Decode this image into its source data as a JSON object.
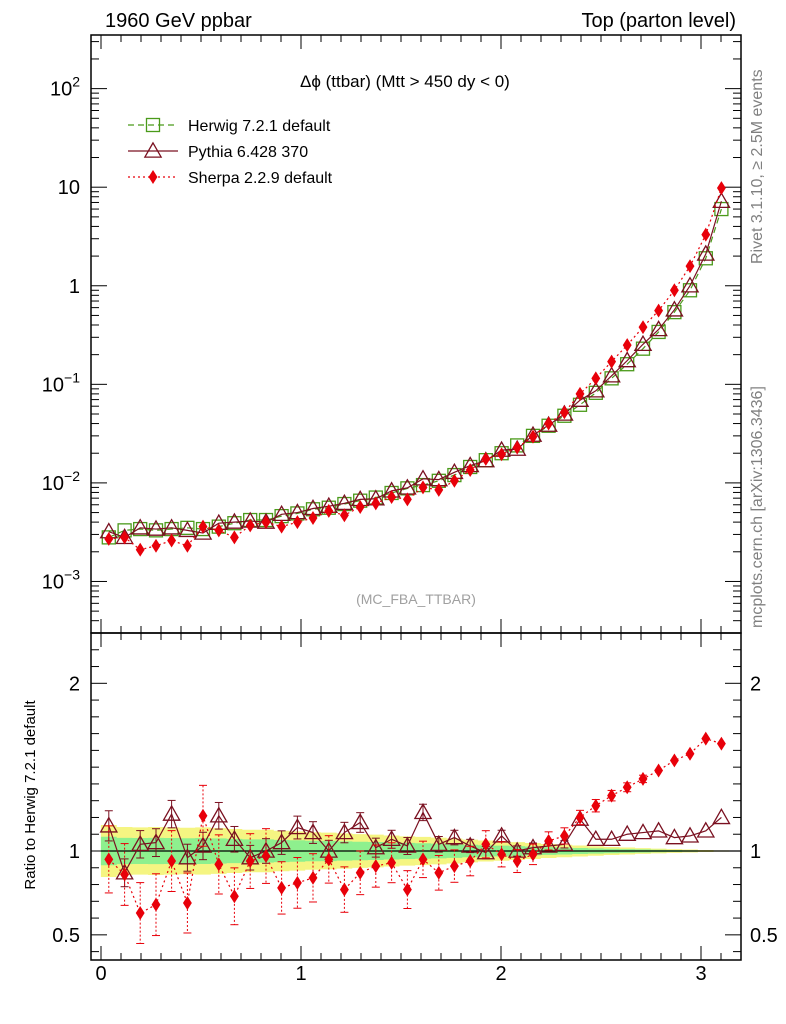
{
  "header": {
    "left": "1960 GeV ppbar",
    "right": "Top (parton level)"
  },
  "side_labels": {
    "top": "Rivet 3.1.10, ≥ 2.5M events",
    "bottom": "mcplots.cern.ch [arXiv:1306.3436]"
  },
  "watermark": "(MC_FBA_TTBAR)",
  "chart_data": [
    {
      "type": "line",
      "panel": "main",
      "title": "Δϕ (ttbar) (Mtt > 450 dy < 0)",
      "xlabel": "",
      "ylabel": "",
      "yscale": "log",
      "xlim": [
        -0.05,
        3.2
      ],
      "ylim": [
        0.0003,
        350
      ],
      "x_ticks": [
        "0",
        "1",
        "2",
        "3"
      ],
      "y_ticks": [
        {
          "value": 0.001,
          "base": "10",
          "exp": "−3"
        },
        {
          "value": 0.01,
          "base": "10",
          "exp": "−2"
        },
        {
          "value": 0.1,
          "base": "10",
          "exp": "−1"
        },
        {
          "value": 1,
          "base": "1",
          "exp": ""
        },
        {
          "value": 10,
          "base": "10",
          "exp": ""
        },
        {
          "value": 100,
          "base": "10",
          "exp": "2"
        }
      ],
      "legend_position": "top-left",
      "x": [
        0.039,
        0.118,
        0.196,
        0.275,
        0.353,
        0.432,
        0.51,
        0.589,
        0.667,
        0.746,
        0.825,
        0.903,
        0.982,
        1.06,
        1.139,
        1.217,
        1.296,
        1.374,
        1.453,
        1.532,
        1.61,
        1.689,
        1.767,
        1.846,
        1.924,
        2.003,
        2.081,
        2.16,
        2.238,
        2.317,
        2.395,
        2.474,
        2.553,
        2.631,
        2.71,
        2.788,
        2.867,
        2.945,
        3.024,
        3.102
      ],
      "series": [
        {
          "name": "Herwig 7.2.1 default",
          "color": "#4a9a1a",
          "marker": "open-square",
          "line": "dashed",
          "values": [
            0.0028,
            0.0033,
            0.0034,
            0.0033,
            0.0034,
            0.0035,
            0.0034,
            0.0036,
            0.0039,
            0.0042,
            0.0042,
            0.0046,
            0.0049,
            0.0054,
            0.0056,
            0.0061,
            0.0066,
            0.0071,
            0.0079,
            0.0088,
            0.0095,
            0.0105,
            0.012,
            0.0145,
            0.017,
            0.02,
            0.024,
            0.03,
            0.038,
            0.048,
            0.062,
            0.082,
            0.115,
            0.16,
            0.23,
            0.34,
            0.54,
            0.9,
            1.9,
            6.0
          ]
        },
        {
          "name": "Pythia 6.428 370",
          "color": "#7a1020",
          "marker": "open-triangle",
          "line": "solid",
          "values": [
            0.0032,
            0.0028,
            0.0035,
            0.0034,
            0.0035,
            0.0033,
            0.0031,
            0.0039,
            0.004,
            0.0041,
            0.004,
            0.0048,
            0.005,
            0.0055,
            0.0058,
            0.0062,
            0.0068,
            0.0069,
            0.0083,
            0.0089,
            0.011,
            0.0108,
            0.0128,
            0.015,
            0.0168,
            0.0215,
            0.022,
            0.0305,
            0.0385,
            0.05,
            0.069,
            0.086,
            0.122,
            0.174,
            0.255,
            0.36,
            0.57,
            1.0,
            2.1,
            7.2
          ]
        },
        {
          "name": "Sherpa 2.2.9 default",
          "color": "#e8000a",
          "marker": "filled-diamond",
          "line": "dotted",
          "values": [
            0.0027,
            0.0028,
            0.0021,
            0.0023,
            0.0026,
            0.0023,
            0.0036,
            0.0033,
            0.0028,
            0.0037,
            0.004,
            0.0036,
            0.004,
            0.0044,
            0.0052,
            0.0047,
            0.0057,
            0.0062,
            0.0072,
            0.0068,
            0.009,
            0.0085,
            0.0105,
            0.0135,
            0.0175,
            0.0195,
            0.0228,
            0.0295,
            0.04,
            0.052,
            0.08,
            0.115,
            0.17,
            0.25,
            0.38,
            0.56,
            0.9,
            1.58,
            3.3,
            9.8
          ]
        }
      ]
    },
    {
      "type": "line",
      "panel": "ratio",
      "title": "",
      "xlabel": "",
      "ylabel": "Ratio to Herwig 7.2.1 default",
      "xlim": [
        -0.05,
        3.2
      ],
      "ylim": [
        0.35,
        2.3
      ],
      "x_ticks": [
        "0",
        "1",
        "2",
        "3"
      ],
      "y_ticks": [
        {
          "value": 0.5,
          "label": "0.5"
        },
        {
          "value": 1,
          "label": "1"
        },
        {
          "value": 2,
          "label": "2"
        }
      ],
      "band_colors": {
        "inner": "#8ef08e",
        "outer": "#f5f582"
      },
      "reference_color": "#000000",
      "series": [
        {
          "name": "Pythia 6.428 370",
          "color": "#7a1020",
          "marker": "open-triangle",
          "line": "solid",
          "values": [
            1.15,
            0.87,
            1.04,
            1.05,
            1.22,
            0.96,
            1.03,
            1.21,
            1.07,
            0.96,
            1.0,
            1.05,
            1.14,
            1.11,
            1.0,
            1.11,
            1.17,
            1.02,
            1.07,
            1.03,
            1.23,
            1.04,
            1.08,
            1.03,
            0.99,
            1.09,
            1.0,
            1.02,
            1.03,
            1.04,
            1.19,
            1.07,
            1.07,
            1.1,
            1.11,
            1.12,
            1.08,
            1.09,
            1.12,
            1.2
          ]
        },
        {
          "name": "Sherpa 2.2.9 default",
          "color": "#e8000a",
          "marker": "filled-diamond",
          "line": "dotted",
          "values": [
            0.95,
            0.86,
            0.63,
            0.68,
            0.94,
            0.69,
            1.21,
            0.92,
            0.73,
            0.94,
            0.97,
            0.78,
            0.81,
            0.84,
            0.95,
            0.77,
            0.87,
            0.91,
            0.93,
            0.77,
            0.95,
            0.87,
            0.91,
            0.94,
            1.04,
            0.98,
            0.94,
            0.98,
            1.06,
            1.09,
            1.2,
            1.27,
            1.33,
            1.38,
            1.43,
            1.48,
            1.54,
            1.58,
            1.67,
            1.64
          ]
        }
      ]
    }
  ]
}
